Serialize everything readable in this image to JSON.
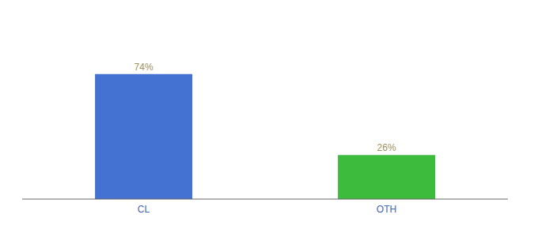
{
  "chart_data": {
    "type": "bar",
    "categories": [
      "CL",
      "OTH"
    ],
    "values": [
      74,
      26
    ],
    "value_labels": [
      "74%",
      "26%"
    ],
    "colors": [
      "#4472d3",
      "#3dbb3d"
    ],
    "ylim": [
      0,
      100
    ],
    "data_labels": true,
    "tick_labels": "x",
    "grid": false
  }
}
